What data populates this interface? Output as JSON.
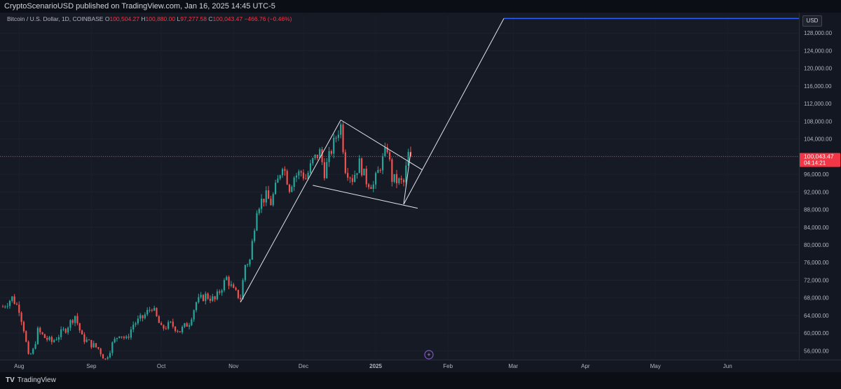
{
  "header": {
    "publisher": "CryptoScenarioUSD published on TradingView.com, Jan 16, 2025 14:45 UTC-5"
  },
  "legend": {
    "symbol": "Bitcoin / U.S. Dollar, 1D, COINBASE",
    "o_label": "O",
    "o_value": "100,504.27",
    "h_label": "H",
    "h_value": "100,880.00",
    "l_label": "L",
    "l_value": "97,277.58",
    "c_label": "C",
    "c_value": "100,043.47",
    "change": "−466.76 (−0.46%)"
  },
  "currency_button": "USD",
  "brand": {
    "name": "TradingView",
    "logo": "TV"
  },
  "current_price": {
    "label": "100,043.47",
    "countdown": "04:14:21",
    "color": "#f23645"
  },
  "colors": {
    "up": "#26a69a",
    "down": "#ef5350",
    "target_line": "#2962ff",
    "drawing": "#e0e3eb",
    "price_line": "#f23645"
  },
  "chart_data": {
    "type": "candlestick",
    "title": "Bitcoin / U.S. Dollar, 1D, COINBASE",
    "ylim": [
      54000,
      132000
    ],
    "y_ticks": [
      56000,
      60000,
      64000,
      68000,
      72000,
      76000,
      80000,
      84000,
      88000,
      92000,
      96000,
      100000,
      104000,
      108000,
      112000,
      116000,
      120000,
      124000,
      128000
    ],
    "y_tick_labels": [
      "56,000.00",
      "60,000.00",
      "64,000.00",
      "68,000.00",
      "72,000.00",
      "76,000.00",
      "80,000.00",
      "84,000.00",
      "88,000.00",
      "92,000.00",
      "96,000.00",
      "100,000.00",
      "104,000.00",
      "108,000.00",
      "112,000.00",
      "116,000.00",
      "120,000.00",
      "124,000.00",
      "128,000.00"
    ],
    "x_range": [
      "2024-07-25",
      "2025-07-01"
    ],
    "x_ticks": [
      {
        "date": "2024-08-01",
        "label": "Aug"
      },
      {
        "date": "2024-09-01",
        "label": "Sep"
      },
      {
        "date": "2024-10-01",
        "label": "Oct"
      },
      {
        "date": "2024-11-01",
        "label": "Nov"
      },
      {
        "date": "2024-12-01",
        "label": "Dec"
      },
      {
        "date": "2025-01-01",
        "label": "2025"
      },
      {
        "date": "2025-02-01",
        "label": "Feb"
      },
      {
        "date": "2025-03-01",
        "label": "Mar"
      },
      {
        "date": "2025-04-01",
        "label": "Apr"
      },
      {
        "date": "2025-05-01",
        "label": "May"
      },
      {
        "date": "2025-06-01",
        "label": "Jun"
      }
    ],
    "closes": [
      {
        "date": "2024-07-25",
        "close": 66000
      },
      {
        "date": "2024-07-29",
        "close": 68000
      },
      {
        "date": "2024-08-01",
        "close": 65500
      },
      {
        "date": "2024-08-03",
        "close": 61000
      },
      {
        "date": "2024-08-05",
        "close": 54500
      },
      {
        "date": "2024-08-07",
        "close": 56000
      },
      {
        "date": "2024-08-09",
        "close": 60500
      },
      {
        "date": "2024-08-12",
        "close": 59000
      },
      {
        "date": "2024-08-15",
        "close": 58000
      },
      {
        "date": "2024-08-18",
        "close": 59500
      },
      {
        "date": "2024-08-21",
        "close": 61000
      },
      {
        "date": "2024-08-25",
        "close": 64000
      },
      {
        "date": "2024-08-28",
        "close": 59000
      },
      {
        "date": "2024-09-01",
        "close": 57500
      },
      {
        "date": "2024-09-04",
        "close": 56500
      },
      {
        "date": "2024-09-07",
        "close": 54000
      },
      {
        "date": "2024-09-10",
        "close": 57500
      },
      {
        "date": "2024-09-13",
        "close": 60000
      },
      {
        "date": "2024-09-16",
        "close": 58500
      },
      {
        "date": "2024-09-19",
        "close": 62000
      },
      {
        "date": "2024-09-23",
        "close": 63500
      },
      {
        "date": "2024-09-27",
        "close": 66000
      },
      {
        "date": "2024-10-01",
        "close": 61000
      },
      {
        "date": "2024-10-05",
        "close": 62000
      },
      {
        "date": "2024-10-09",
        "close": 60500
      },
      {
        "date": "2024-10-13",
        "close": 62500
      },
      {
        "date": "2024-10-16",
        "close": 67000
      },
      {
        "date": "2024-10-20",
        "close": 68500
      },
      {
        "date": "2024-10-24",
        "close": 67500
      },
      {
        "date": "2024-10-29",
        "close": 72500
      },
      {
        "date": "2024-11-01",
        "close": 69500
      },
      {
        "date": "2024-11-04",
        "close": 68000
      },
      {
        "date": "2024-11-06",
        "close": 75500
      },
      {
        "date": "2024-11-08",
        "close": 76500
      },
      {
        "date": "2024-11-11",
        "close": 88500
      },
      {
        "date": "2024-11-13",
        "close": 90000
      },
      {
        "date": "2024-11-15",
        "close": 91000
      },
      {
        "date": "2024-11-17",
        "close": 89500
      },
      {
        "date": "2024-11-20",
        "close": 94500
      },
      {
        "date": "2024-11-22",
        "close": 98500
      },
      {
        "date": "2024-11-25",
        "close": 93000
      },
      {
        "date": "2024-11-27",
        "close": 95500
      },
      {
        "date": "2024-11-30",
        "close": 96500
      },
      {
        "date": "2024-12-02",
        "close": 95000
      },
      {
        "date": "2024-12-05",
        "close": 99000
      },
      {
        "date": "2024-12-08",
        "close": 101000
      },
      {
        "date": "2024-12-10",
        "close": 96500
      },
      {
        "date": "2024-12-13",
        "close": 101500
      },
      {
        "date": "2024-12-16",
        "close": 106000
      },
      {
        "date": "2024-12-17",
        "close": 107000
      },
      {
        "date": "2024-12-19",
        "close": 97500
      },
      {
        "date": "2024-12-22",
        "close": 95000
      },
      {
        "date": "2024-12-25",
        "close": 98500
      },
      {
        "date": "2024-12-28",
        "close": 94500
      },
      {
        "date": "2024-12-31",
        "close": 93500
      },
      {
        "date": "2025-01-03",
        "close": 98000
      },
      {
        "date": "2025-01-06",
        "close": 102000
      },
      {
        "date": "2025-01-08",
        "close": 95000
      },
      {
        "date": "2025-01-10",
        "close": 94500
      },
      {
        "date": "2025-01-13",
        "close": 94000
      },
      {
        "date": "2025-01-15",
        "close": 100500
      },
      {
        "date": "2025-01-16",
        "close": 100043
      }
    ]
  },
  "drawings": [
    {
      "name": "impulse-line",
      "from": {
        "date": "2024-11-04",
        "price": 67000
      },
      "to": {
        "date": "2024-12-17",
        "price": 108300
      }
    },
    {
      "name": "flag-upper-line",
      "from": {
        "date": "2024-12-17",
        "price": 108300
      },
      "to": {
        "date": "2025-01-21",
        "price": 97000
      }
    },
    {
      "name": "flag-lower-line",
      "from": {
        "date": "2024-12-05",
        "price": 93500
      },
      "to": {
        "date": "2025-01-19",
        "price": 88300
      }
    },
    {
      "name": "flag-right-edge",
      "from": {
        "date": "2025-01-13",
        "price": 89200
      },
      "to": {
        "date": "2025-01-16",
        "price": 101000
      }
    },
    {
      "name": "projection-line",
      "from": {
        "date": "2025-01-13",
        "price": 89200
      },
      "to": {
        "date": "2025-02-25",
        "price": 131300
      }
    }
  ],
  "target_level": 131300
}
